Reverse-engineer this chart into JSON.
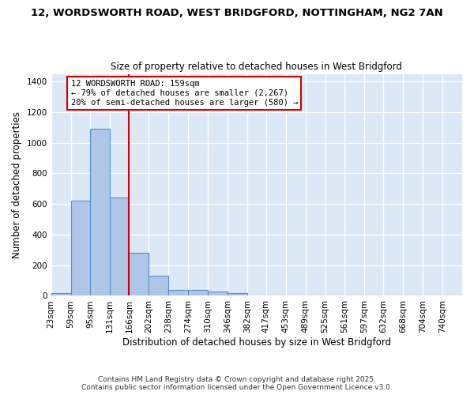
{
  "title_line1": "12, WORDSWORTH ROAD, WEST BRIDGFORD, NOTTINGHAM, NG2 7AN",
  "title_line2": "Size of property relative to detached houses in West Bridgford",
  "xlabel": "Distribution of detached houses by size in West Bridgford",
  "ylabel": "Number of detached properties",
  "bin_labels": [
    "23sqm",
    "59sqm",
    "95sqm",
    "131sqm",
    "166sqm",
    "202sqm",
    "238sqm",
    "274sqm",
    "310sqm",
    "346sqm",
    "382sqm",
    "417sqm",
    "453sqm",
    "489sqm",
    "525sqm",
    "561sqm",
    "597sqm",
    "632sqm",
    "668sqm",
    "704sqm",
    "740sqm"
  ],
  "bar_heights": [
    20,
    620,
    1090,
    640,
    280,
    130,
    40,
    40,
    30,
    20,
    0,
    0,
    0,
    0,
    0,
    0,
    0,
    0,
    0,
    0,
    0
  ],
  "bar_color": "#aec6e8",
  "bar_edge_color": "#5b8fc9",
  "bg_color": "#dce8f5",
  "grid_color": "#ffffff",
  "annotation_text": "12 WORDSWORTH ROAD: 159sqm\n← 79% of detached houses are smaller (2,267)\n20% of semi-detached houses are larger (580) →",
  "annotation_box_color": "#ffffff",
  "annotation_box_edge": "#cc0000",
  "vline_color": "#cc0000",
  "vline_x": 166,
  "ylim": [
    0,
    1450
  ],
  "yticks": [
    0,
    200,
    400,
    600,
    800,
    1000,
    1200,
    1400
  ],
  "footer_line1": "Contains HM Land Registry data © Crown copyright and database right 2025.",
  "footer_line2": "Contains public sector information licensed under the Open Government Licence v3.0.",
  "bin_edges": [
    23,
    59,
    95,
    131,
    166,
    202,
    238,
    274,
    310,
    346,
    382,
    417,
    453,
    489,
    525,
    561,
    597,
    632,
    668,
    704,
    740,
    776
  ]
}
